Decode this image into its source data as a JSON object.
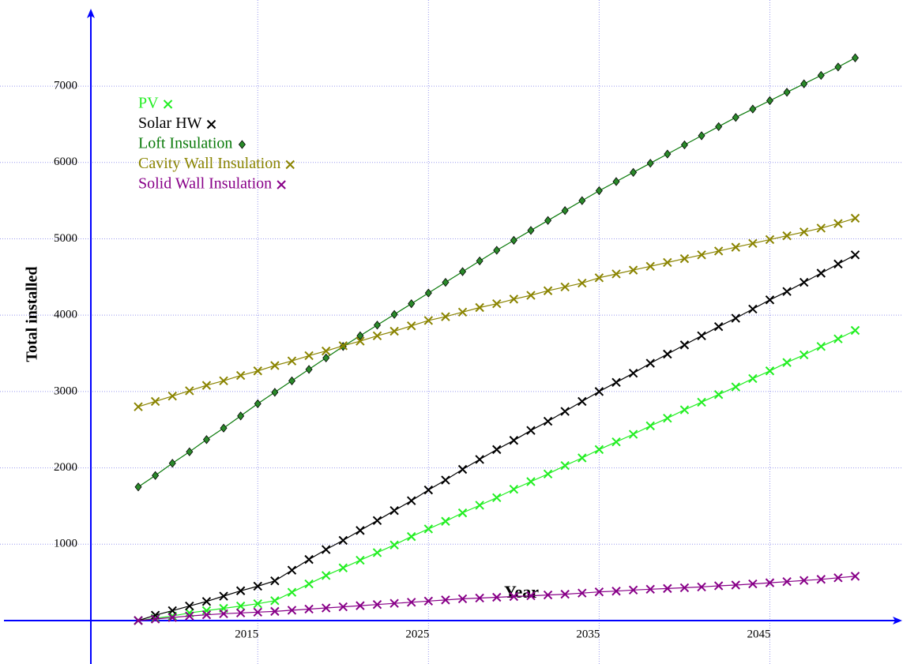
{
  "chart_data": {
    "type": "line",
    "xlabel": "Year",
    "ylabel": "Total installed",
    "x": [
      2008,
      2009,
      2010,
      2011,
      2012,
      2013,
      2014,
      2015,
      2016,
      2017,
      2018,
      2019,
      2020,
      2021,
      2022,
      2023,
      2024,
      2025,
      2026,
      2027,
      2028,
      2029,
      2030,
      2031,
      2032,
      2033,
      2034,
      2035,
      2036,
      2037,
      2038,
      2039,
      2040,
      2041,
      2042,
      2043,
      2044,
      2045,
      2046,
      2047,
      2048,
      2049,
      2050
    ],
    "series": [
      {
        "name": "PV",
        "color": "#22ee22",
        "marker": "x",
        "values": [
          0,
          30,
          60,
          100,
          130,
          160,
          190,
          220,
          260,
          370,
          480,
          590,
          690,
          790,
          890,
          990,
          1100,
          1200,
          1300,
          1410,
          1510,
          1610,
          1720,
          1820,
          1920,
          2030,
          2130,
          2240,
          2340,
          2440,
          2550,
          2650,
          2760,
          2860,
          2960,
          3060,
          3170,
          3270,
          3380,
          3480,
          3590,
          3690,
          3800
        ]
      },
      {
        "name": "Solar HW",
        "color": "#000000",
        "marker": "x",
        "values": [
          0,
          70,
          130,
          190,
          250,
          320,
          390,
          450,
          520,
          660,
          800,
          930,
          1050,
          1180,
          1310,
          1440,
          1570,
          1710,
          1840,
          1980,
          2110,
          2240,
          2360,
          2490,
          2610,
          2740,
          2870,
          3000,
          3120,
          3240,
          3370,
          3490,
          3610,
          3730,
          3850,
          3960,
          4080,
          4200,
          4310,
          4430,
          4550,
          4670,
          4790
        ]
      },
      {
        "name": "Loft Insulation",
        "color": "#0a7a0a",
        "marker": "diamond",
        "values": [
          1750,
          1900,
          2060,
          2210,
          2370,
          2520,
          2680,
          2840,
          2990,
          3140,
          3290,
          3440,
          3590,
          3730,
          3870,
          4010,
          4150,
          4290,
          4430,
          4570,
          4710,
          4850,
          4980,
          5110,
          5240,
          5370,
          5500,
          5630,
          5750,
          5870,
          5990,
          6110,
          6230,
          6350,
          6470,
          6590,
          6700,
          6810,
          6920,
          7030,
          7140,
          7250,
          7370
        ]
      },
      {
        "name": "Cavity Wall Insulation",
        "color": "#8a8400",
        "marker": "x",
        "values": [
          2800,
          2870,
          2940,
          3010,
          3080,
          3140,
          3210,
          3270,
          3340,
          3400,
          3470,
          3530,
          3600,
          3660,
          3730,
          3790,
          3860,
          3930,
          3980,
          4040,
          4100,
          4150,
          4210,
          4260,
          4320,
          4370,
          4420,
          4490,
          4540,
          4590,
          4640,
          4690,
          4740,
          4790,
          4840,
          4890,
          4940,
          4990,
          5040,
          5090,
          5140,
          5200,
          5270
        ]
      },
      {
        "name": "Solid Wall Insulation",
        "color": "#880088",
        "marker": "x",
        "values": [
          0,
          20,
          40,
          60,
          75,
          90,
          100,
          110,
          120,
          135,
          150,
          165,
          180,
          195,
          210,
          225,
          240,
          255,
          270,
          285,
          295,
          305,
          315,
          325,
          335,
          345,
          360,
          375,
          385,
          400,
          410,
          420,
          430,
          440,
          455,
          465,
          480,
          495,
          510,
          525,
          540,
          560,
          580
        ]
      }
    ],
    "xlim": [
      1999.9,
      2052.8
    ],
    "ylim": [
      -569,
      8128
    ],
    "xticks": [
      2015,
      2025,
      2035,
      2045
    ],
    "yticks": [
      1000,
      2000,
      3000,
      4000,
      5000,
      6000,
      7000
    ],
    "grid": true,
    "legend": "upper left"
  }
}
